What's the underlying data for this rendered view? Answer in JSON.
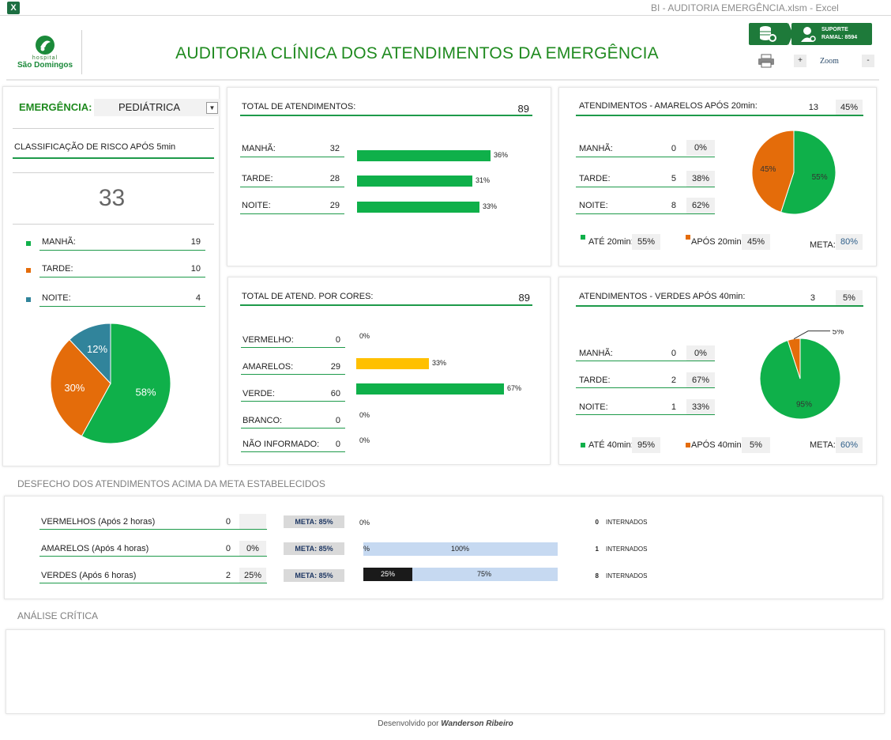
{
  "window": {
    "title": "BI - AUDITORIA EMERGÊNCIA.xlsm - Excel",
    "app_icon": "X"
  },
  "header": {
    "logo_small": "hospital",
    "logo_name": "São Domingos",
    "title": "AUDITORIA CLÍNICA DOS ATENDIMENTOS DA EMERGÊNCIA",
    "support_line1": "SUPORTE",
    "support_line2": "RAMAL: 8594",
    "zoom_plus": "+",
    "zoom_label": "Zoom",
    "zoom_minus": "-"
  },
  "left": {
    "emergencia_label": "EMERGÊNCIA:",
    "emergencia_value": "PEDIÁTRICA",
    "classif_label": "CLASSIFICAÇÃO DE RISCO APÓS 5min",
    "big_number": "33",
    "rows": [
      {
        "label": "MANHÃ:",
        "value": "19",
        "color": "#0fb04a"
      },
      {
        "label": "TARDE:",
        "value": "10",
        "color": "#e46c0a"
      },
      {
        "label": "NOITE:",
        "value": "4",
        "color": "#31849b"
      }
    ]
  },
  "total": {
    "title": "TOTAL DE ATENDIMENTOS:",
    "value": "89",
    "rows": [
      {
        "label": "MANHÃ:",
        "value": "32",
        "pct": "36%"
      },
      {
        "label": "TARDE:",
        "value": "28",
        "pct": "31%"
      },
      {
        "label": "NOITE:",
        "value": "29",
        "pct": "33%"
      }
    ]
  },
  "cores": {
    "title": "TOTAL DE ATEND. POR CORES:",
    "value": "89",
    "rows": [
      {
        "label": "VERMELHO:",
        "value": "0",
        "pct": "0%"
      },
      {
        "label": "AMARELOS:",
        "value": "29",
        "pct": "33%"
      },
      {
        "label": "VERDE:",
        "value": "60",
        "pct": "67%"
      },
      {
        "label": "BRANCO:",
        "value": "0",
        "pct": "0%"
      },
      {
        "label": "NÃO INFORMADO:",
        "value": "0",
        "pct": "0%"
      }
    ]
  },
  "amarelos": {
    "title": "ATENDIMENTOS - AMARELOS APÓS 20min:",
    "value": "13",
    "pct": "45%",
    "rows": [
      {
        "label": "MANHÃ:",
        "value": "0",
        "pct": "0%"
      },
      {
        "label": "TARDE:",
        "value": "5",
        "pct": "38%"
      },
      {
        "label": "NOITE:",
        "value": "8",
        "pct": "62%"
      }
    ],
    "legend_ate": "ATÉ 20min:",
    "legend_ate_pct": "55%",
    "legend_apos": "APÓS 20min:",
    "legend_apos_pct": "45%",
    "meta_label": "META:",
    "meta_value": "80%"
  },
  "verdes": {
    "title": "ATENDIMENTOS - VERDES APÓS 40min:",
    "value": "3",
    "pct": "5%",
    "rows": [
      {
        "label": "MANHÃ:",
        "value": "0",
        "pct": "0%"
      },
      {
        "label": "TARDE:",
        "value": "2",
        "pct": "67%"
      },
      {
        "label": "NOITE:",
        "value": "1",
        "pct": "33%"
      }
    ],
    "legend_ate": "ATÉ 40min:",
    "legend_ate_pct": "95%",
    "legend_apos": "APÓS 40min:",
    "legend_apos_pct": "5%",
    "meta_label": "META:",
    "meta_value": "60%"
  },
  "desfecho": {
    "section_title": "DESFECHO DOS ATENDIMENTOS ACIMA DA META ESTABELECIDOS",
    "rows": [
      {
        "label": "VERMELHOS (Após 2 horas)",
        "value": "0",
        "pct": "",
        "meta": "META: 85%",
        "bar_pct": "0%",
        "internados": "0",
        "internados_label": "INTERNADOS"
      },
      {
        "label": "AMARELOS (Após 4 horas)",
        "value": "0",
        "pct": "0%",
        "meta": "META: 85%",
        "bar_left": "%",
        "bar_right": "100%",
        "internados": "1",
        "internados_label": "INTERNADOS"
      },
      {
        "label": "VERDES (Após 6 horas)",
        "value": "2",
        "pct": "25%",
        "meta": "META: 85%",
        "bar_left": "25%",
        "bar_right": "75%",
        "internados": "8",
        "internados_label": "INTERNADOS"
      }
    ]
  },
  "analise": {
    "section_title": "ANÁLISE CRÍTICA"
  },
  "footer": {
    "prefix": "Desenvolvido por",
    "author": "Wanderson Ribeiro"
  },
  "chart_data": [
    {
      "type": "pie",
      "title": "",
      "categories": [
        "MANHÃ",
        "TARDE",
        "NOITE"
      ],
      "values": [
        58,
        30,
        12
      ],
      "labels": [
        "58%",
        "30%",
        "12%"
      ],
      "colors": [
        "#0fb04a",
        "#e46c0a",
        "#31849b"
      ]
    },
    {
      "type": "bar",
      "title": "TOTAL DE ATENDIMENTOS",
      "categories": [
        "MANHÃ",
        "TARDE",
        "NOITE"
      ],
      "values": [
        36,
        31,
        33
      ]
    },
    {
      "type": "bar",
      "title": "TOTAL DE ATEND. POR CORES",
      "categories": [
        "VERMELHO",
        "AMARELOS",
        "VERDE",
        "BRANCO",
        "NÃO INFORMADO"
      ],
      "values": [
        0,
        33,
        67,
        0,
        0
      ],
      "colors": [
        "#c00000",
        "#ffc000",
        "#0fb04a",
        "#bfbfbf",
        "#bfbfbf"
      ]
    },
    {
      "type": "pie",
      "title": "",
      "categories": [
        "ATÉ 20min",
        "APÓS 20min"
      ],
      "values": [
        55,
        45
      ],
      "labels": [
        "55%",
        "45%"
      ],
      "colors": [
        "#0fb04a",
        "#e46c0a"
      ]
    },
    {
      "type": "pie",
      "title": "",
      "categories": [
        "ATÉ 40min",
        "APÓS 40min"
      ],
      "values": [
        95,
        5
      ],
      "labels": [
        "95%",
        "5%"
      ],
      "colors": [
        "#0fb04a",
        "#e46c0a"
      ]
    }
  ]
}
